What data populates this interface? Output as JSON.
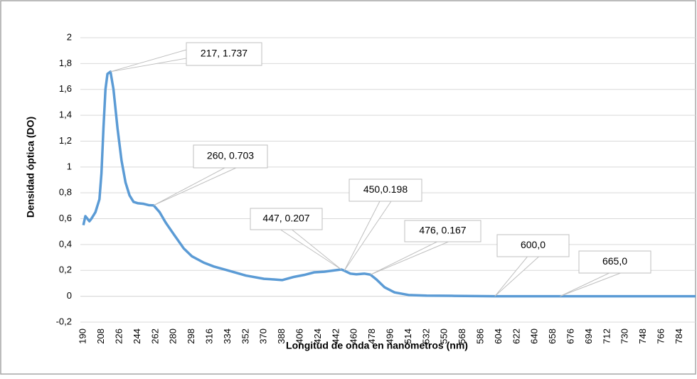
{
  "chart_data": {
    "type": "line",
    "xlabel": "Longitud de onda en nanómetros (nm)",
    "ylabel": "Densidad óptica (DO)",
    "series": [
      {
        "name": "DO",
        "color": "#5b9bd5",
        "x": [
          190,
          192,
          194,
          196,
          198,
          202,
          206,
          208,
          210,
          212,
          214,
          217,
          220,
          224,
          228,
          232,
          236,
          240,
          244,
          250,
          255,
          260,
          266,
          272,
          280,
          290,
          298,
          310,
          320,
          334,
          352,
          370,
          380,
          388,
          400,
          410,
          420,
          430,
          440,
          447,
          450,
          456,
          462,
          470,
          476,
          482,
          490,
          500,
          514,
          532,
          560,
          600,
          665,
          700,
          750,
          800
        ],
        "values": [
          0.55,
          0.62,
          0.6,
          0.58,
          0.6,
          0.65,
          0.75,
          0.95,
          1.3,
          1.6,
          1.72,
          1.737,
          1.6,
          1.3,
          1.05,
          0.88,
          0.78,
          0.73,
          0.72,
          0.715,
          0.705,
          0.703,
          0.65,
          0.57,
          0.48,
          0.37,
          0.31,
          0.26,
          0.23,
          0.2,
          0.16,
          0.135,
          0.13,
          0.125,
          0.15,
          0.165,
          0.185,
          0.19,
          0.2,
          0.207,
          0.198,
          0.175,
          0.17,
          0.175,
          0.167,
          0.13,
          0.07,
          0.03,
          0.01,
          0.005,
          0.003,
          0,
          0,
          0,
          0,
          0
        ]
      }
    ],
    "xlim": [
      187,
      800
    ],
    "xticks": [
      190,
      208,
      226,
      244,
      262,
      280,
      298,
      316,
      334,
      352,
      370,
      388,
      406,
      424,
      442,
      460,
      478,
      496,
      514,
      532,
      550,
      568,
      586,
      604,
      622,
      640,
      658,
      676,
      694,
      712,
      730,
      748,
      766,
      784
    ],
    "ylim": [
      -0.2,
      2
    ],
    "yticks": [
      {
        "value": -0.2,
        "label": "-0,2"
      },
      0,
      {
        "value": 0.2,
        "label": "0,2"
      },
      {
        "value": 0.4,
        "label": "0,4"
      },
      {
        "value": 0.6,
        "label": "0,6"
      },
      {
        "value": 0.8,
        "label": "0,8"
      },
      1,
      {
        "value": 1.2,
        "label": "1,2"
      },
      {
        "value": 1.4,
        "label": "1,4"
      },
      {
        "value": 1.6,
        "label": "1,6"
      },
      {
        "value": 1.8,
        "label": "1,8"
      },
      2
    ],
    "grid": true,
    "annotations": [
      {
        "text": "217, 1.737",
        "x": 217,
        "y": 1.737
      },
      {
        "text": "260, 0.703",
        "x": 260,
        "y": 0.703
      },
      {
        "text": "450,0.198",
        "x": 450,
        "y": 0.198
      },
      {
        "text": "447, 0.207",
        "x": 447,
        "y": 0.207
      },
      {
        "text": "476, 0.167",
        "x": 476,
        "y": 0.167
      },
      {
        "text": "600,0",
        "x": 600,
        "y": 0
      },
      {
        "text": "665,0",
        "x": 665,
        "y": 0
      }
    ]
  }
}
